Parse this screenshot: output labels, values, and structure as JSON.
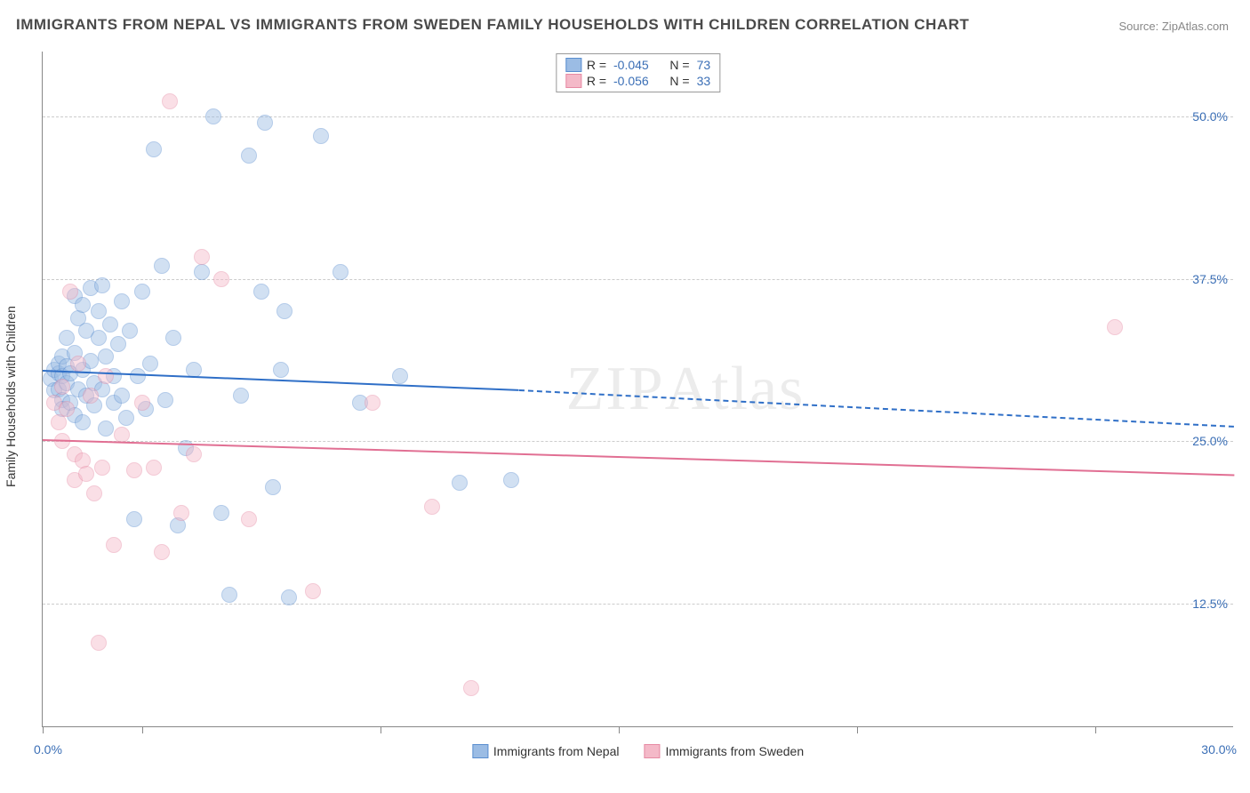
{
  "title": "IMMIGRANTS FROM NEPAL VS IMMIGRANTS FROM SWEDEN FAMILY HOUSEHOLDS WITH CHILDREN CORRELATION CHART",
  "source": "Source: ZipAtlas.com",
  "watermark": "ZIPAtlas",
  "chart": {
    "type": "scatter",
    "background_color": "#ffffff",
    "grid_color": "#cccccc",
    "axis_color": "#888888",
    "label_fontsize": 14,
    "tick_label_color": "#3b6fb6",
    "ylabel": "Family Households with Children",
    "xlim": [
      0,
      30
    ],
    "ylim": [
      3,
      55
    ],
    "xtick_positions": [
      0,
      2.5,
      8.5,
      14.5,
      20.5,
      26.5
    ],
    "ytick_positions": [
      12.5,
      25.0,
      37.5,
      50.0
    ],
    "ytick_labels": [
      "12.5%",
      "25.0%",
      "37.5%",
      "50.0%"
    ],
    "xaxis_min_label": "0.0%",
    "xaxis_max_label": "30.0%",
    "marker_radius": 9,
    "marker_opacity": 0.45,
    "series": [
      {
        "name": "Immigrants from Nepal",
        "color_fill": "#9bbce4",
        "color_stroke": "#5a8ecf",
        "trend_color": "#2f6fc7",
        "R": "-0.045",
        "N": "73",
        "trend": {
          "x0": 0,
          "y0": 30.5,
          "x1": 12.0,
          "y1": 29.0,
          "dash_after_x": 12.0,
          "x2": 30.0,
          "y2": 26.2
        },
        "points": [
          [
            0.2,
            29.8
          ],
          [
            0.3,
            30.5
          ],
          [
            0.3,
            28.9
          ],
          [
            0.4,
            30.2
          ],
          [
            0.4,
            29.0
          ],
          [
            0.4,
            31.0
          ],
          [
            0.5,
            28.2
          ],
          [
            0.5,
            30.0
          ],
          [
            0.5,
            31.5
          ],
          [
            0.5,
            27.5
          ],
          [
            0.6,
            30.8
          ],
          [
            0.6,
            29.5
          ],
          [
            0.6,
            33.0
          ],
          [
            0.7,
            28.0
          ],
          [
            0.7,
            30.2
          ],
          [
            0.8,
            27.0
          ],
          [
            0.8,
            31.8
          ],
          [
            0.8,
            36.2
          ],
          [
            0.9,
            29.0
          ],
          [
            0.9,
            34.5
          ],
          [
            1.0,
            30.5
          ],
          [
            1.0,
            26.5
          ],
          [
            1.0,
            35.5
          ],
          [
            1.1,
            28.5
          ],
          [
            1.1,
            33.5
          ],
          [
            1.2,
            31.2
          ],
          [
            1.2,
            36.8
          ],
          [
            1.3,
            29.5
          ],
          [
            1.3,
            27.8
          ],
          [
            1.4,
            33.0
          ],
          [
            1.4,
            35.0
          ],
          [
            1.5,
            29.0
          ],
          [
            1.5,
            37.0
          ],
          [
            1.6,
            31.5
          ],
          [
            1.6,
            26.0
          ],
          [
            1.7,
            34.0
          ],
          [
            1.8,
            28.0
          ],
          [
            1.8,
            30.0
          ],
          [
            1.9,
            32.5
          ],
          [
            2.0,
            28.5
          ],
          [
            2.0,
            35.8
          ],
          [
            2.1,
            26.8
          ],
          [
            2.2,
            33.5
          ],
          [
            2.3,
            19.0
          ],
          [
            2.4,
            30.0
          ],
          [
            2.5,
            36.5
          ],
          [
            2.6,
            27.5
          ],
          [
            2.7,
            31.0
          ],
          [
            2.8,
            47.5
          ],
          [
            3.0,
            38.5
          ],
          [
            3.1,
            28.2
          ],
          [
            3.3,
            33.0
          ],
          [
            3.4,
            18.5
          ],
          [
            3.6,
            24.5
          ],
          [
            3.8,
            30.5
          ],
          [
            4.0,
            38.0
          ],
          [
            4.3,
            50.0
          ],
          [
            4.5,
            19.5
          ],
          [
            4.7,
            13.2
          ],
          [
            5.0,
            28.5
          ],
          [
            5.2,
            47.0
          ],
          [
            5.5,
            36.5
          ],
          [
            5.6,
            49.5
          ],
          [
            5.8,
            21.5
          ],
          [
            6.0,
            30.5
          ],
          [
            6.1,
            35.0
          ],
          [
            6.2,
            13.0
          ],
          [
            7.0,
            48.5
          ],
          [
            7.5,
            38.0
          ],
          [
            8.0,
            28.0
          ],
          [
            9.0,
            30.0
          ],
          [
            10.5,
            21.8
          ],
          [
            11.8,
            22.0
          ]
        ]
      },
      {
        "name": "Immigrants from Sweden",
        "color_fill": "#f4b9c8",
        "color_stroke": "#e68aa3",
        "trend_color": "#e16f93",
        "R": "-0.056",
        "N": "33",
        "trend": {
          "x0": 0,
          "y0": 25.2,
          "x1": 30.0,
          "y1": 22.5,
          "dash_after_x": null
        },
        "points": [
          [
            0.3,
            28.0
          ],
          [
            0.4,
            26.5
          ],
          [
            0.5,
            29.2
          ],
          [
            0.5,
            25.0
          ],
          [
            0.6,
            27.5
          ],
          [
            0.7,
            36.5
          ],
          [
            0.8,
            24.0
          ],
          [
            0.8,
            22.0
          ],
          [
            0.9,
            31.0
          ],
          [
            1.0,
            23.5
          ],
          [
            1.1,
            22.5
          ],
          [
            1.2,
            28.5
          ],
          [
            1.3,
            21.0
          ],
          [
            1.4,
            9.5
          ],
          [
            1.5,
            23.0
          ],
          [
            1.6,
            30.0
          ],
          [
            1.8,
            17.0
          ],
          [
            2.0,
            25.5
          ],
          [
            2.3,
            22.8
          ],
          [
            2.5,
            28.0
          ],
          [
            2.8,
            23.0
          ],
          [
            3.0,
            16.5
          ],
          [
            3.2,
            51.2
          ],
          [
            3.5,
            19.5
          ],
          [
            3.8,
            24.0
          ],
          [
            4.0,
            39.2
          ],
          [
            4.5,
            37.5
          ],
          [
            5.2,
            19.0
          ],
          [
            6.8,
            13.5
          ],
          [
            8.3,
            28.0
          ],
          [
            9.8,
            20.0
          ],
          [
            10.8,
            6.0
          ],
          [
            27.0,
            33.8
          ]
        ]
      }
    ]
  },
  "legend_top": {
    "R_label": "R =",
    "N_label": "N ="
  },
  "legend_bottom": {
    "items": [
      "Immigrants from Nepal",
      "Immigrants from Sweden"
    ]
  }
}
